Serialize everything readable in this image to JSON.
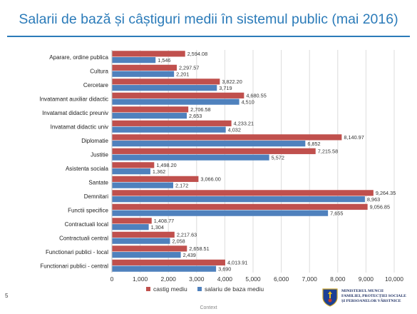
{
  "slide": {
    "title": "Salarii de bază și câștiguri medii în sistemul public (mai 2016)",
    "slide_number": "5",
    "footer_context": "Context",
    "logo": {
      "line1": "Ministerul Muncii",
      "line2": "Familiei, Protecției Sociale",
      "line3": "și Persoanelor Vârstnice"
    }
  },
  "colors": {
    "castig": "#c0504d",
    "salariu": "#4f81bd",
    "title": "#2b7bb9"
  },
  "chart_data": {
    "type": "bar",
    "orientation": "horizontal",
    "categories": [
      "Aparare, ordine publica",
      "Cultura",
      "Cercetare",
      "Invatamant auxiliar didactic",
      "Invatamat didactic preuniv",
      "Invatamat didactic univ",
      "Diplomatie",
      "Justitie",
      "Asistenta sociala",
      "Santate",
      "Demnitari",
      "Functii specifice",
      "Contractuali local",
      "Contractuali central",
      "Functionari publici - local",
      "Functionari publici - central"
    ],
    "series": [
      {
        "name": "castig mediu",
        "color": "#c0504d",
        "values": [
          2594.08,
          2297.57,
          3822.2,
          4680.55,
          2706.58,
          4233.21,
          8140.97,
          7215.58,
          1498.2,
          3066.0,
          9264.35,
          9056.85,
          1408.77,
          2217.63,
          2658.51,
          4013.91
        ],
        "labels": [
          "2,594.08",
          "2,297.57",
          "3,822.20",
          "4,680.55",
          "2,706.58",
          "4,233.21",
          "8,140.97",
          "7,215.58",
          "1,498.20",
          "3,066.00",
          "9,264.35",
          "9,056.85",
          "1,408.77",
          "2,217.63",
          "2,658.51",
          "4,013.91"
        ]
      },
      {
        "name": "salariu de baza mediu",
        "color": "#4f81bd",
        "values": [
          1546,
          2201,
          3719,
          4510,
          2653,
          4032,
          6852,
          5572,
          1362,
          2172,
          8963,
          7655,
          1304,
          2058,
          2439,
          3690
        ],
        "labels": [
          "1,546",
          "2,201",
          "3,719",
          "4,510",
          "2,653",
          "4,032",
          "6,852",
          "5,572",
          "1,362",
          "2,172",
          "8,963",
          "7,655",
          "1,304",
          "2,058",
          "2,439",
          "3,690"
        ]
      }
    ],
    "x_ticks": [
      0,
      1000,
      2000,
      3000,
      4000,
      5000,
      6000,
      7000,
      8000,
      9000,
      10000
    ],
    "x_tick_labels": [
      "0",
      "1,000",
      "2,000",
      "3,000",
      "4,000",
      "5,000",
      "6,000",
      "7,000",
      "8,000",
      "9,000",
      "10,000"
    ],
    "xlim": [
      0,
      10000
    ],
    "grid": true,
    "legend_position": "bottom"
  }
}
